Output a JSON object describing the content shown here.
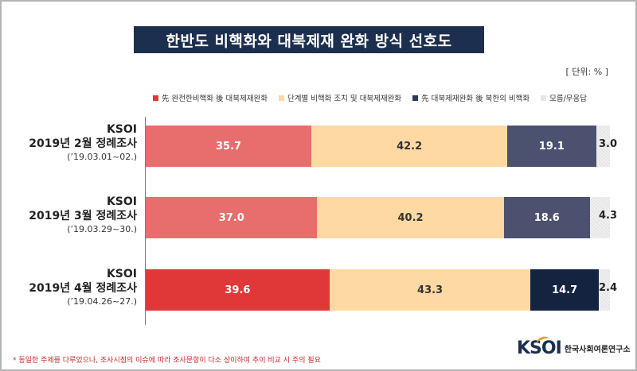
{
  "title": "한반도 비핵화와 대북제재 완화 방식 선호도",
  "unit_label": "[ 단위: % ]",
  "footnote": "* 동일한 주제를 다루었으나, 조사시점의 이슈에 따라 조사문항이 다소 상이하여 추이 비교 시 주의 필요",
  "logo": {
    "mark": "KSOI",
    "text": "한국사회여론연구소"
  },
  "colors": {
    "frame": "#b5b5b5",
    "title_bg": "#1d2f4f",
    "accent": "#e39d2a",
    "footnote": "#cc2a2a"
  },
  "rows": [
    {
      "org": "KSOI",
      "name": "2019년 2월 정례조사",
      "date": "(’19.03.01~02.)"
    },
    {
      "org": "KSOI",
      "name": "2019년 3월 정례조사",
      "date": "(’19.03.29~30.)"
    },
    {
      "org": "KSOI",
      "name": "2019년 4월 정례조사",
      "date": "(’19.04.26~27.)"
    }
  ],
  "chart_data": {
    "type": "bar",
    "orientation": "horizontal",
    "stacked": true,
    "title": "한반도 비핵화와 대북제재 완화 방식 선호도",
    "unit": "[ 단위: % ]",
    "xlim": [
      0,
      100
    ],
    "grid": false,
    "legend_position": "top",
    "categories": [
      "2019년 2월 정례조사",
      "2019년 3월 정례조사",
      "2019년 4월 정례조사"
    ],
    "series": [
      {
        "name": "先 완전한비핵화 後 대북제재완화",
        "values": [
          35.7,
          37.0,
          39.6
        ],
        "labels": [
          "35.7",
          "37.0",
          "39.6"
        ],
        "colors": [
          "#e86d6d",
          "#e86d6d",
          "#e03838"
        ],
        "label_color": "#ffffff"
      },
      {
        "name": "단계별 비핵화 조치 및 대북제재완화",
        "values": [
          42.2,
          40.2,
          43.3
        ],
        "labels": [
          "42.2",
          "40.2",
          "43.3"
        ],
        "colors": [
          "#ffd9a3",
          "#ffd9a3",
          "#ffd9a3"
        ],
        "label_color": "#333333"
      },
      {
        "name": "先 대북제재완화 後 북한의 비핵화",
        "values": [
          19.1,
          18.6,
          14.7
        ],
        "labels": [
          "19.1",
          "18.6",
          "14.7"
        ],
        "colors": [
          "#4b516e",
          "#4b516e",
          "#14233f"
        ],
        "label_color": "#ffffff"
      },
      {
        "name": "모름/무응답",
        "values": [
          3.0,
          4.3,
          2.4
        ],
        "labels": [
          "3.0",
          "4.3",
          "2.4"
        ],
        "colors": [
          "#e6e6e6",
          "#e6e6e6",
          "#e6e6e6"
        ],
        "label_color": "#222222"
      }
    ]
  }
}
